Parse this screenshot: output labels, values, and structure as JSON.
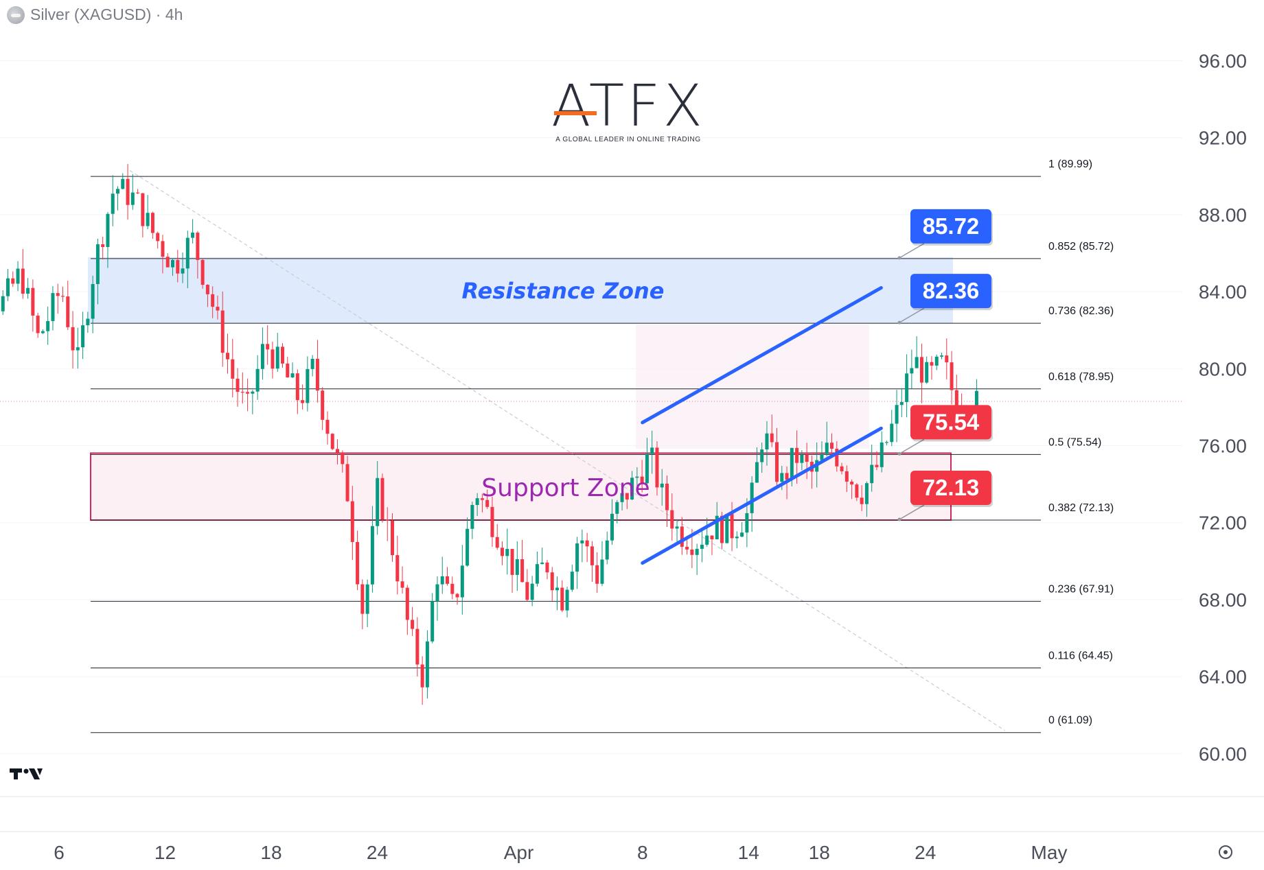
{
  "header": {
    "symbol_icon": "silver-coin-icon",
    "title": "Silver (XAGUSD) · 4h"
  },
  "logo": {
    "name": "ATFX",
    "tagline": "A GLOBAL LEADER IN ONLINE TRADING"
  },
  "colors": {
    "up": "#089981",
    "down": "#f23645",
    "blue": "#2962ff",
    "resistance_fill": "#dbe8fc",
    "support_fill": "#fdf0f4",
    "support_border": "#d02a5a",
    "label_blue": "#2962ff",
    "label_red": "#f23645"
  },
  "chart_data": {
    "type": "candlestick",
    "title": "Silver (XAGUSD) · 4h",
    "ylim": [
      59,
      98
    ],
    "y_ticks": [
      "96.00",
      "92.00",
      "88.00",
      "84.00",
      "80.00",
      "76.00",
      "72.00",
      "68.00",
      "64.00",
      "60.00"
    ],
    "y_tick_values": [
      96,
      92,
      88,
      84,
      80,
      76,
      72,
      68,
      64,
      60
    ],
    "x_ticks": [
      "6",
      "12",
      "18",
      "24",
      "Apr",
      "8",
      "14",
      "18",
      "24",
      "May"
    ],
    "x_tick_days": [
      6,
      12,
      18,
      24,
      32,
      39,
      45,
      49,
      55,
      62
    ],
    "current_price": 78.3,
    "fibonacci": [
      {
        "label": "1 (89.99)",
        "value": 89.99
      },
      {
        "label": "0.852 (85.72)",
        "value": 85.72
      },
      {
        "label": "0.736 (82.36)",
        "value": 82.36
      },
      {
        "label": "0.618 (78.95)",
        "value": 78.95
      },
      {
        "label": "0.5 (75.54)",
        "value": 75.54
      },
      {
        "label": "0.382 (72.13)",
        "value": 72.13
      },
      {
        "label": "0.236 (67.91)",
        "value": 67.91
      },
      {
        "label": "0.116 (64.45)",
        "value": 64.45
      },
      {
        "label": "0 (61.09)",
        "value": 61.09
      }
    ],
    "zones": [
      {
        "name": "Resistance Zone",
        "from": 82.36,
        "to": 85.72,
        "color": "#dbe8fc"
      },
      {
        "name": "Support Zone",
        "from": 72.13,
        "to": 75.54,
        "color": "#fdf0f4"
      }
    ],
    "price_labels": [
      {
        "text": "85.72",
        "value": 85.72,
        "color": "#2962ff"
      },
      {
        "text": "82.36",
        "value": 82.36,
        "color": "#2962ff"
      },
      {
        "text": "75.54",
        "value": 75.54,
        "color": "#f23645"
      },
      {
        "text": "72.13",
        "value": 72.13,
        "color": "#f23645"
      }
    ],
    "channel": {
      "upper": [
        {
          "day": 39,
          "y": 77.2
        },
        {
          "day": 52.5,
          "y": 84.2
        }
      ],
      "lower": [
        {
          "day": 39,
          "y": 69.9
        },
        {
          "day": 52.5,
          "y": 76.9
        }
      ]
    },
    "downtrend_line": [
      {
        "day": 10,
        "y": 90.3
      },
      {
        "day": 59.5,
        "y": 61.2
      }
    ],
    "pivots": [
      {
        "day": 0.0,
        "y": 80.5
      },
      {
        "day": 1.0,
        "y": 84.5
      },
      {
        "day": 1.8,
        "y": 86.3
      },
      {
        "day": 2.8,
        "y": 83.2
      },
      {
        "day": 4.0,
        "y": 85.0
      },
      {
        "day": 5.0,
        "y": 81.5
      },
      {
        "day": 6.3,
        "y": 84.2
      },
      {
        "day": 7.2,
        "y": 80.2
      },
      {
        "day": 8.2,
        "y": 85.5
      },
      {
        "day": 9.3,
        "y": 89.5
      },
      {
        "day": 10.5,
        "y": 88.8
      },
      {
        "day": 11.5,
        "y": 87.0
      },
      {
        "day": 12.7,
        "y": 85.3
      },
      {
        "day": 13.7,
        "y": 86.8
      },
      {
        "day": 14.8,
        "y": 83.5
      },
      {
        "day": 16.0,
        "y": 79.5
      },
      {
        "day": 16.8,
        "y": 77.8
      },
      {
        "day": 17.8,
        "y": 81.3
      },
      {
        "day": 18.8,
        "y": 80.0
      },
      {
        "day": 19.8,
        "y": 78.3
      },
      {
        "day": 20.5,
        "y": 80.0
      },
      {
        "day": 21.5,
        "y": 76.5
      },
      {
        "day": 22.5,
        "y": 73.5
      },
      {
        "day": 23.4,
        "y": 67.0
      },
      {
        "day": 24.2,
        "y": 73.8
      },
      {
        "day": 25.2,
        "y": 70.0
      },
      {
        "day": 26.0,
        "y": 66.2
      },
      {
        "day": 26.8,
        "y": 63.8
      },
      {
        "day": 27.5,
        "y": 69.5
      },
      {
        "day": 28.5,
        "y": 67.5
      },
      {
        "day": 29.7,
        "y": 73.8
      },
      {
        "day": 30.7,
        "y": 72.0
      },
      {
        "day": 31.7,
        "y": 70.0
      },
      {
        "day": 32.7,
        "y": 68.2
      },
      {
        "day": 33.7,
        "y": 70.0
      },
      {
        "day": 34.6,
        "y": 68.0
      },
      {
        "day": 35.6,
        "y": 71.5
      },
      {
        "day": 36.6,
        "y": 69.2
      },
      {
        "day": 37.6,
        "y": 72.5
      },
      {
        "day": 38.6,
        "y": 74.0
      },
      {
        "day": 39.6,
        "y": 75.5
      },
      {
        "day": 40.3,
        "y": 73.3
      },
      {
        "day": 41.2,
        "y": 71.5
      },
      {
        "day": 42.2,
        "y": 71.0
      },
      {
        "day": 43.2,
        "y": 71.8
      },
      {
        "day": 44.2,
        "y": 71.6
      },
      {
        "day": 45.2,
        "y": 72.5
      },
      {
        "day": 46.0,
        "y": 76.8
      },
      {
        "day": 47.0,
        "y": 74.0
      },
      {
        "day": 47.8,
        "y": 75.5
      },
      {
        "day": 48.8,
        "y": 74.5
      },
      {
        "day": 49.8,
        "y": 76.0
      },
      {
        "day": 50.5,
        "y": 75.0
      },
      {
        "day": 51.5,
        "y": 73.5
      },
      {
        "day": 52.5,
        "y": 75.0
      },
      {
        "day": 53.5,
        "y": 77.5
      },
      {
        "day": 54.5,
        "y": 80.5
      },
      {
        "day": 55.3,
        "y": 79.5
      },
      {
        "day": 56.2,
        "y": 80.3
      },
      {
        "day": 56.8,
        "y": 78.5
      },
      {
        "day": 57.8,
        "y": 78.2
      }
    ],
    "candle_span": {
      "start_day": 0,
      "end_day": 57.9,
      "count": 206
    }
  },
  "footer": {
    "settings_icon": "settings-gear-icon",
    "brand_icon": "tradingview-logo-icon"
  }
}
